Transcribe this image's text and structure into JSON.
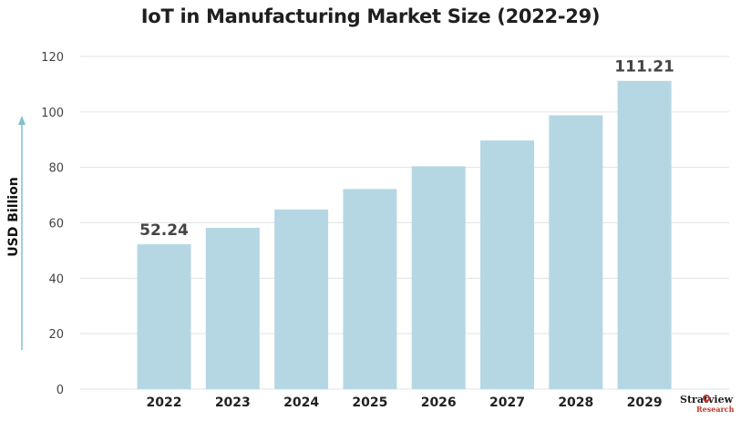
{
  "chart_data": {
    "type": "bar",
    "title": "IoT in Manufacturing Market Size (2022-29)",
    "xlabel": "",
    "ylabel": "USD Billion",
    "categories": [
      "2022",
      "2023",
      "2024",
      "2025",
      "2026",
      "2027",
      "2028",
      "2029"
    ],
    "values": [
      52.24,
      58.2,
      64.8,
      72.2,
      80.4,
      89.7,
      98.8,
      111.21
    ],
    "data_labels": [
      {
        "category": "2022",
        "text": "52.24"
      },
      {
        "category": "2029",
        "text": "111.21"
      }
    ],
    "ylim": [
      0,
      120
    ],
    "yticks": [
      "0",
      "20",
      "40",
      "60",
      "80",
      "100",
      "120"
    ],
    "grid": true,
    "bar_color": "#b5d7e4",
    "grid_color": "#e3e3e3",
    "axis_arrow_color": "#7fc0cf"
  },
  "logo": {
    "text": "Stratview",
    "subtext": "Research"
  }
}
